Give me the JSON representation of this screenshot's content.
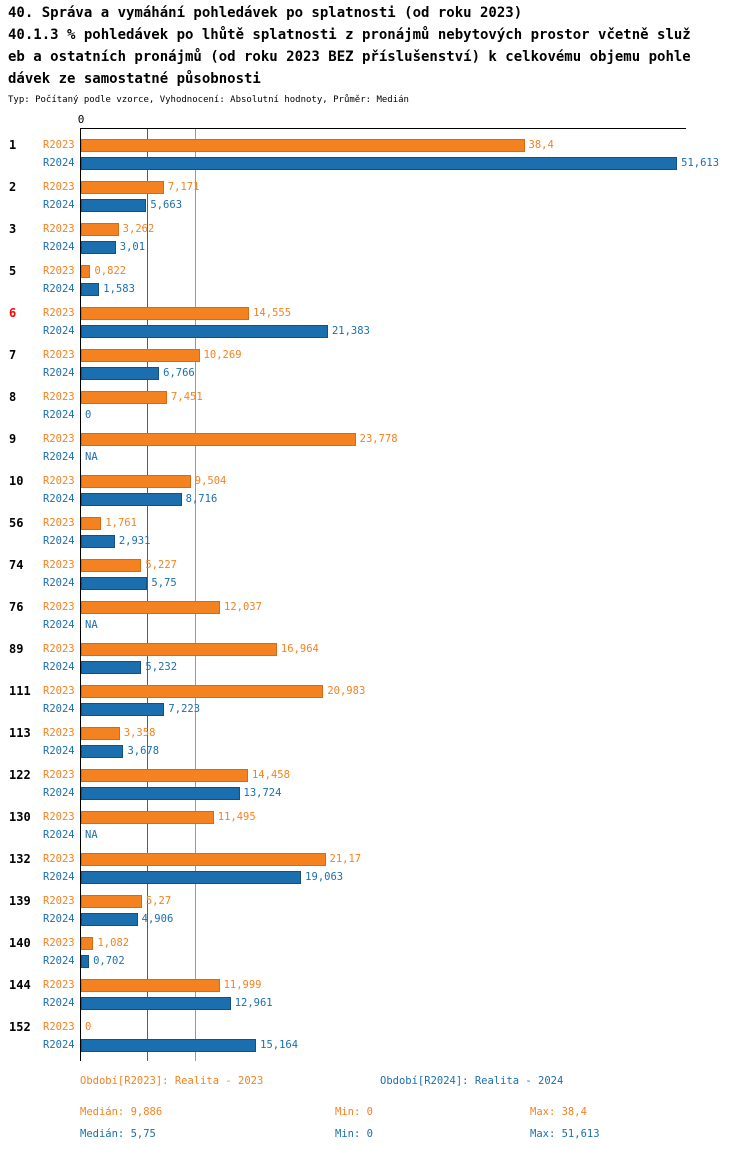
{
  "header": {
    "title": "40. Správa a vymáhání pohledávek po splatnosti (od roku 2023)",
    "subtitle_lines": [
      "40.1.3 % pohledávek po lhůtě splatnosti z pronájmů nebytových prostor včetně služ",
      "eb a ostatních pronájmů (od roku 2023 BEZ příslušenství) k celkovému objemu pohle",
      "dávek ze samostatné působnosti"
    ],
    "meta": "Typ: Počítaný podle vzorce, Vyhodnocení: Absolutní hodnoty, Průměr: Medián"
  },
  "colors": {
    "r2023": "#F58220",
    "r2023_border": "#D96A0E",
    "r2024": "#1B6FAE",
    "r2024_border": "#14517F",
    "highlight_category": "#FF0000"
  },
  "chart_data": {
    "type": "bar",
    "orientation": "horizontal",
    "title": "40. Správa a vymáhání pohledávek po splatnosti (od roku 2023)",
    "subtitle": "40.1.3 % pohledávek po lhůtě splatnosti z pronájmů nebytových prostor včetně služeb a ostatních pronájmů (od roku 2023 BEZ příslušenství) k celkovému objemu pohledávek ze samostatné působnosti",
    "categories": [
      "1",
      "2",
      "3",
      "5",
      "6",
      "7",
      "8",
      "9",
      "10",
      "56",
      "74",
      "76",
      "89",
      "111",
      "113",
      "122",
      "130",
      "132",
      "139",
      "140",
      "144",
      "152"
    ],
    "highlighted_category": "6",
    "series": [
      {
        "name": "R2023",
        "color": "#F58220",
        "border": "#D96A0E",
        "values": [
          38.4,
          7.171,
          3.262,
          0.822,
          14.555,
          10.269,
          7.451,
          23.778,
          9.504,
          1.761,
          5.227,
          12.037,
          16.964,
          20.983,
          3.358,
          14.458,
          11.495,
          21.17,
          5.27,
          1.082,
          11.999,
          0
        ],
        "value_labels": [
          "38,4",
          "7,171",
          "3,262",
          "0,822",
          "14,555",
          "10,269",
          "7,451",
          "23,778",
          "9,504",
          "1,761",
          "5,227",
          "12,037",
          "16,964",
          "20,983",
          "3,358",
          "14,458",
          "11,495",
          "21,17",
          "5,27",
          "1,082",
          "11,999",
          "0"
        ]
      },
      {
        "name": "R2024",
        "color": "#1B6FAE",
        "border": "#14517F",
        "values": [
          51.613,
          5.663,
          3.01,
          1.583,
          21.383,
          6.766,
          0,
          null,
          8.716,
          2.931,
          5.75,
          null,
          5.232,
          7.223,
          3.678,
          13.724,
          null,
          19.063,
          4.906,
          0.702,
          12.961,
          15.164
        ],
        "value_labels": [
          "51,613",
          "5,663",
          "3,01",
          "1,583",
          "21,383",
          "6,766",
          "0",
          "NA",
          "8,716",
          "2,931",
          "5,75",
          "NA",
          "5,232",
          "7,223",
          "3,678",
          "13,724",
          "NA",
          "19,063",
          "4,906",
          "0,702",
          "12,961",
          "15,164"
        ]
      }
    ],
    "x_axis": {
      "origin_label": "0",
      "xlim": [
        0,
        52.4
      ]
    },
    "median_lines": [
      {
        "series": "R2023",
        "value": 9.886,
        "color": "#F58220"
      },
      {
        "series": "R2024",
        "value": 5.75,
        "color": "#1B6FAE"
      }
    ],
    "grid": "off",
    "legend_position": "bottom"
  },
  "legend": [
    {
      "label": "Období[R2023]: Realita - 2023"
    },
    {
      "label": "Období[R2024]: Realita - 2024"
    }
  ],
  "stats": [
    {
      "series": "R2023",
      "median": "Medián: 9,886",
      "min": "Min: 0",
      "max": "Max: 38,4"
    },
    {
      "series": "R2024",
      "median": "Medián: 5,75",
      "min": "Min: 0",
      "max": "Max: 51,613"
    }
  ]
}
